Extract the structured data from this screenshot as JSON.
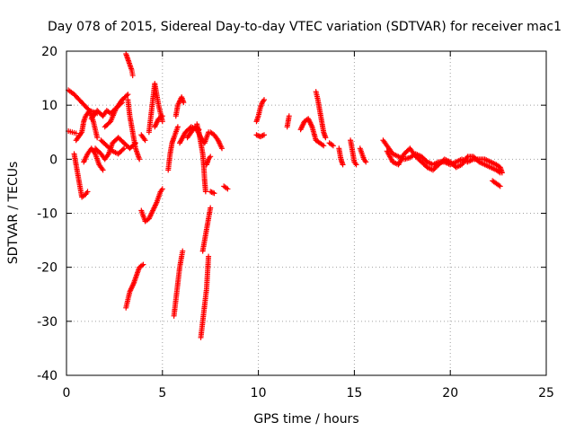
{
  "colors": {
    "series": "#ff0000",
    "grid": "#a0a0a0",
    "frame": "#000000"
  },
  "chart_data": {
    "type": "scatter",
    "title": "Day 078 of 2015, Sidereal Day-to-day VTEC variation (SDTVAR) for receiver mac1",
    "xlabel": "GPS time / hours",
    "ylabel": "SDTVAR / TECUs",
    "xlim": [
      0,
      25
    ],
    "ylim": [
      -40,
      20
    ],
    "xticks": [
      0,
      5,
      10,
      15,
      20,
      25
    ],
    "yticks": [
      -40,
      -30,
      -20,
      -10,
      0,
      10,
      20
    ],
    "grid": true,
    "marker": "plus",
    "segments": [
      [
        [
          0.1,
          12.8
        ],
        [
          0.4,
          12.0
        ],
        [
          0.8,
          10.5
        ],
        [
          1.2,
          9.0
        ],
        [
          1.6,
          8.5
        ]
      ],
      [
        [
          0.1,
          5.2
        ],
        [
          0.3,
          5.0
        ],
        [
          0.5,
          4.8
        ]
      ],
      [
        [
          0.4,
          1.0
        ],
        [
          0.5,
          -1.0
        ],
        [
          0.6,
          -3.0
        ],
        [
          0.7,
          -5.0
        ],
        [
          0.8,
          -7.0
        ],
        [
          1.0,
          -6.5
        ],
        [
          1.1,
          -6.0
        ]
      ],
      [
        [
          0.5,
          3.5
        ],
        [
          0.8,
          5.0
        ],
        [
          0.9,
          7.0
        ],
        [
          1.0,
          8.0
        ],
        [
          1.2,
          9.0
        ],
        [
          1.4,
          7.0
        ],
        [
          1.6,
          4.0
        ]
      ],
      [
        [
          0.9,
          -0.5
        ],
        [
          1.1,
          1.0
        ],
        [
          1.3,
          2.0
        ],
        [
          1.5,
          1.0
        ],
        [
          1.7,
          -1.0
        ],
        [
          1.9,
          -2.0
        ]
      ],
      [
        [
          1.3,
          7.5
        ],
        [
          1.6,
          9.0
        ],
        [
          1.9,
          8.0
        ],
        [
          2.1,
          9.0
        ],
        [
          2.3,
          8.5
        ],
        [
          2.6,
          9.5
        ],
        [
          2.9,
          11.0
        ],
        [
          3.2,
          12.0
        ]
      ],
      [
        [
          1.5,
          2.0
        ],
        [
          1.8,
          1.0
        ],
        [
          2.0,
          0.0
        ],
        [
          2.2,
          1.0
        ],
        [
          2.4,
          3.0
        ],
        [
          2.7,
          4.0
        ],
        [
          3.0,
          3.0
        ],
        [
          3.3,
          2.0
        ],
        [
          3.6,
          3.0
        ]
      ],
      [
        [
          1.8,
          3.5
        ],
        [
          2.1,
          2.5
        ],
        [
          2.4,
          1.5
        ],
        [
          2.7,
          1.0
        ],
        [
          3.0,
          2.0
        ]
      ],
      [
        [
          2.0,
          6.0
        ],
        [
          2.3,
          7.0
        ],
        [
          2.6,
          9.5
        ],
        [
          2.9,
          10.5
        ]
      ],
      [
        [
          3.1,
          19.5
        ],
        [
          3.2,
          18.5
        ],
        [
          3.3,
          17.5
        ],
        [
          3.4,
          16.5
        ],
        [
          3.45,
          15.5
        ]
      ],
      [
        [
          3.2,
          11.0
        ],
        [
          3.3,
          8.0
        ],
        [
          3.4,
          6.0
        ],
        [
          3.5,
          4.0
        ],
        [
          3.6,
          2.0
        ],
        [
          3.7,
          1.0
        ],
        [
          3.8,
          0.0
        ]
      ],
      [
        [
          3.1,
          -27.5
        ],
        [
          3.2,
          -26.0
        ],
        [
          3.3,
          -24.5
        ],
        [
          3.5,
          -23.0
        ],
        [
          3.6,
          -22.0
        ],
        [
          3.7,
          -21.0
        ],
        [
          3.8,
          -20.0
        ],
        [
          4.0,
          -19.5
        ]
      ],
      [
        [
          3.9,
          4.5
        ],
        [
          4.1,
          3.5
        ]
      ],
      [
        [
          3.9,
          -9.5
        ],
        [
          4.1,
          -11.5
        ],
        [
          4.3,
          -11.0
        ],
        [
          4.5,
          -9.5
        ],
        [
          4.7,
          -8.0
        ],
        [
          4.9,
          -6.0
        ],
        [
          5.0,
          -5.5
        ]
      ],
      [
        [
          4.3,
          5.0
        ],
        [
          4.4,
          8.0
        ],
        [
          4.5,
          11.0
        ],
        [
          4.6,
          14.0
        ],
        [
          4.8,
          10.0
        ],
        [
          5.0,
          7.0
        ]
      ],
      [
        [
          4.6,
          6.0
        ],
        [
          4.8,
          7.5
        ],
        [
          5.0,
          8.0
        ]
      ],
      [
        [
          5.3,
          -2.0
        ],
        [
          5.4,
          1.0
        ],
        [
          5.5,
          3.0
        ],
        [
          5.6,
          4.0
        ],
        [
          5.8,
          6.0
        ]
      ],
      [
        [
          5.6,
          -29.0
        ],
        [
          5.7,
          -26.0
        ],
        [
          5.8,
          -23.0
        ],
        [
          5.9,
          -20.0
        ],
        [
          6.0,
          -18.0
        ],
        [
          6.05,
          -17.0
        ]
      ],
      [
        [
          5.7,
          8.0
        ],
        [
          5.8,
          10.0
        ],
        [
          6.0,
          11.5
        ],
        [
          6.1,
          10.5
        ]
      ],
      [
        [
          5.9,
          3.0
        ],
        [
          6.2,
          5.0
        ],
        [
          6.5,
          6.0
        ],
        [
          6.8,
          5.5
        ],
        [
          7.0,
          4.0
        ],
        [
          7.2,
          3.0
        ],
        [
          7.4,
          5.0
        ]
      ],
      [
        [
          6.3,
          4.0
        ],
        [
          6.5,
          5.0
        ],
        [
          6.7,
          6.0
        ],
        [
          6.9,
          5.5
        ]
      ],
      [
        [
          6.8,
          6.5
        ],
        [
          6.9,
          5.0
        ],
        [
          7.0,
          3.0
        ],
        [
          7.1,
          1.0
        ],
        [
          7.15,
          -1.0
        ],
        [
          7.2,
          -4.0
        ],
        [
          7.25,
          -6.0
        ]
      ],
      [
        [
          7.0,
          -33.0
        ],
        [
          7.1,
          -30.0
        ],
        [
          7.2,
          -27.0
        ],
        [
          7.3,
          -24.0
        ],
        [
          7.35,
          -21.0
        ],
        [
          7.4,
          -18.0
        ]
      ],
      [
        [
          7.1,
          -17.0
        ],
        [
          7.2,
          -15.0
        ],
        [
          7.3,
          -13.0
        ],
        [
          7.4,
          -11.0
        ],
        [
          7.5,
          -9.0
        ]
      ],
      [
        [
          7.3,
          -1.0
        ],
        [
          7.4,
          0.0
        ],
        [
          7.5,
          0.5
        ]
      ],
      [
        [
          7.5,
          5.0
        ],
        [
          7.7,
          4.5
        ],
        [
          7.9,
          3.5
        ],
        [
          8.1,
          2.0
        ]
      ],
      [
        [
          7.5,
          -6.0
        ],
        [
          7.7,
          -6.3
        ]
      ],
      [
        [
          8.2,
          -5.0
        ],
        [
          8.4,
          -5.5
        ]
      ],
      [
        [
          9.9,
          7.0
        ],
        [
          10.0,
          8.0
        ],
        [
          10.1,
          9.5
        ],
        [
          10.2,
          10.5
        ],
        [
          10.3,
          11.0
        ]
      ],
      [
        [
          9.9,
          4.5
        ],
        [
          10.1,
          4.2
        ],
        [
          10.3,
          4.5
        ]
      ],
      [
        [
          11.5,
          6.0
        ],
        [
          11.6,
          8.0
        ]
      ],
      [
        [
          12.2,
          5.5
        ],
        [
          12.4,
          7.0
        ],
        [
          12.6,
          7.5
        ],
        [
          12.8,
          6.0
        ],
        [
          13.0,
          3.5
        ],
        [
          13.2,
          3.0
        ],
        [
          13.4,
          2.5
        ]
      ],
      [
        [
          13.0,
          12.5
        ],
        [
          13.1,
          11.0
        ],
        [
          13.2,
          9.0
        ],
        [
          13.3,
          7.0
        ],
        [
          13.4,
          5.0
        ],
        [
          13.5,
          4.0
        ]
      ],
      [
        [
          13.7,
          3.0
        ],
        [
          13.9,
          2.5
        ]
      ],
      [
        [
          14.2,
          2.0
        ],
        [
          14.3,
          0.0
        ],
        [
          14.4,
          -1.0
        ]
      ],
      [
        [
          14.8,
          3.5
        ],
        [
          14.9,
          1.5
        ],
        [
          15.0,
          -0.5
        ],
        [
          15.1,
          -1.0
        ]
      ],
      [
        [
          15.3,
          2.0
        ],
        [
          15.5,
          0.0
        ],
        [
          15.6,
          -0.5
        ]
      ],
      [
        [
          16.5,
          3.5
        ],
        [
          16.8,
          2.0
        ],
        [
          17.0,
          1.0
        ],
        [
          17.3,
          0.5
        ],
        [
          17.6,
          0.0
        ],
        [
          17.9,
          0.3
        ],
        [
          18.2,
          1.0
        ],
        [
          18.5,
          0.5
        ],
        [
          18.8,
          -0.5
        ],
        [
          19.1,
          -1.0
        ],
        [
          19.4,
          -0.5
        ],
        [
          19.7,
          -0.5
        ],
        [
          20.0,
          -1.0
        ],
        [
          20.3,
          -0.5
        ],
        [
          20.6,
          0.0
        ],
        [
          20.9,
          -0.5
        ],
        [
          21.2,
          0.0
        ],
        [
          21.5,
          0.0
        ],
        [
          21.8,
          0.0
        ],
        [
          22.1,
          -0.5
        ],
        [
          22.4,
          -1.0
        ],
        [
          22.6,
          -1.5
        ],
        [
          22.7,
          -2.5
        ]
      ],
      [
        [
          16.7,
          1.5
        ],
        [
          17.0,
          -0.5
        ],
        [
          17.3,
          -1.0
        ],
        [
          17.6,
          1.0
        ],
        [
          17.9,
          2.0
        ],
        [
          18.2,
          0.5
        ],
        [
          18.5,
          -0.5
        ],
        [
          18.8,
          -1.5
        ],
        [
          19.1,
          -2.0
        ],
        [
          19.4,
          -1.0
        ],
        [
          19.7,
          0.0
        ],
        [
          20.0,
          -0.5
        ],
        [
          20.3,
          -1.5
        ],
        [
          20.6,
          -1.0
        ],
        [
          20.9,
          0.5
        ],
        [
          21.2,
          0.5
        ],
        [
          21.5,
          -0.5
        ],
        [
          21.8,
          -1.0
        ],
        [
          22.1,
          -1.5
        ],
        [
          22.4,
          -2.0
        ],
        [
          22.6,
          -2.5
        ]
      ],
      [
        [
          22.2,
          -4.0
        ],
        [
          22.4,
          -4.5
        ],
        [
          22.6,
          -5.0
        ]
      ]
    ]
  }
}
